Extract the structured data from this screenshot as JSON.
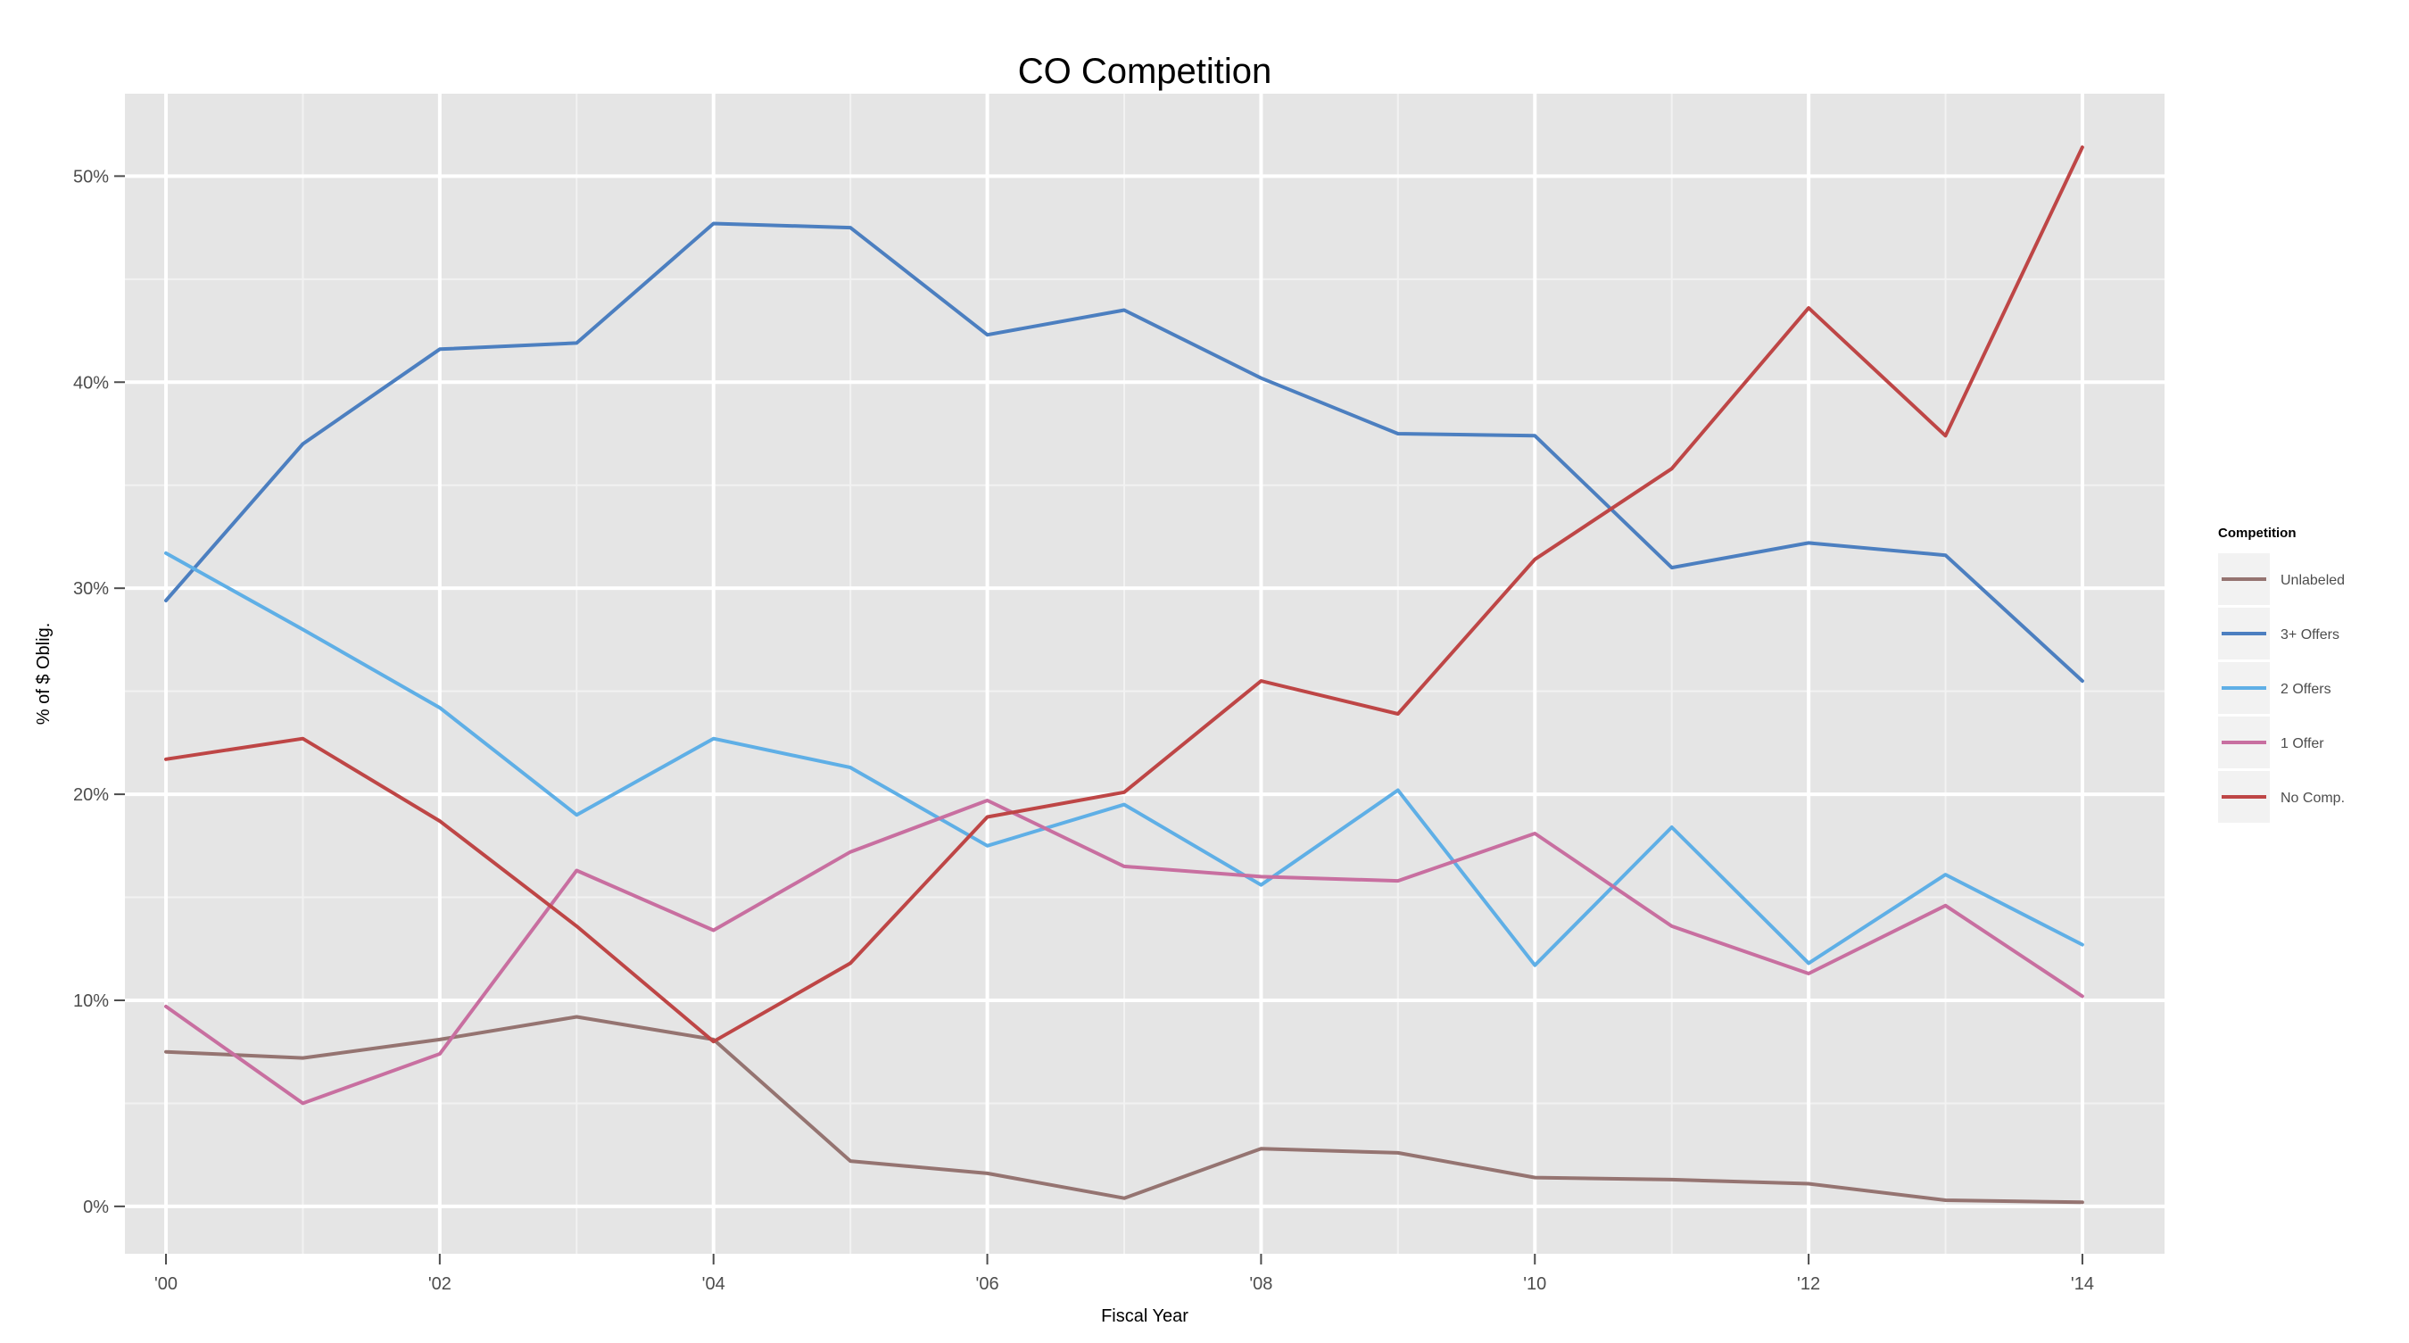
{
  "chart_data": {
    "type": "line",
    "title": "CO Competition",
    "xlabel": "Fiscal Year",
    "ylabel": "% of $ Oblig.",
    "x": [
      2000,
      2001,
      2002,
      2003,
      2004,
      2005,
      2006,
      2007,
      2008,
      2009,
      2010,
      2011,
      2012,
      2013,
      2014
    ],
    "x_ticks": [
      {
        "value": 2000,
        "label": "'00"
      },
      {
        "value": 2002,
        "label": "'02"
      },
      {
        "value": 2004,
        "label": "'04"
      },
      {
        "value": 2006,
        "label": "'06"
      },
      {
        "value": 2008,
        "label": "'08"
      },
      {
        "value": 2010,
        "label": "'10"
      },
      {
        "value": 2012,
        "label": "'12"
      },
      {
        "value": 2014,
        "label": "'14"
      }
    ],
    "y_ticks": [
      {
        "value": 0,
        "label": "0%"
      },
      {
        "value": 10,
        "label": "10%"
      },
      {
        "value": 20,
        "label": "20%"
      },
      {
        "value": 30,
        "label": "30%"
      },
      {
        "value": 40,
        "label": "40%"
      },
      {
        "value": 50,
        "label": "50%"
      }
    ],
    "xlim": [
      1999.7,
      2014.6
    ],
    "ylim": [
      -2.3,
      54.0
    ],
    "grid": true,
    "legend_title": "Competition",
    "legend_position": "right",
    "series": [
      {
        "name": "Unlabeled",
        "color": "#957471",
        "values": [
          7.5,
          7.2,
          8.1,
          9.2,
          8.1,
          2.2,
          1.6,
          0.4,
          2.8,
          2.6,
          1.4,
          1.3,
          1.1,
          0.3,
          0.2
        ]
      },
      {
        "name": "3+ Offers",
        "color": "#4C7FC0",
        "values": [
          29.4,
          37.0,
          41.6,
          41.9,
          47.7,
          47.5,
          42.3,
          43.5,
          40.2,
          37.5,
          37.4,
          31.0,
          32.2,
          31.6,
          25.5
        ]
      },
      {
        "name": "2 Offers",
        "color": "#5FAFE6",
        "values": [
          31.7,
          28.0,
          24.2,
          19.0,
          22.7,
          21.3,
          17.5,
          19.5,
          15.6,
          20.2,
          11.7,
          18.4,
          11.8,
          16.1,
          12.7
        ]
      },
      {
        "name": "1 Offer",
        "color": "#C86FA0",
        "values": [
          9.7,
          5.0,
          7.4,
          16.3,
          13.4,
          17.2,
          19.7,
          16.5,
          16.0,
          15.8,
          18.1,
          13.6,
          11.3,
          14.6,
          10.2
        ]
      },
      {
        "name": "No Comp.",
        "color": "#BE4646",
        "values": [
          21.7,
          22.7,
          18.7,
          13.6,
          8.0,
          11.8,
          18.9,
          20.1,
          25.5,
          23.9,
          31.4,
          35.8,
          43.6,
          37.4,
          51.4
        ]
      }
    ],
    "colors": {
      "panel_background": "#E5E5E5",
      "grid_major": "#FFFFFF",
      "grid_minor": "#F2F2F2",
      "tick_text": "#4D4D4D",
      "legend_key_background": "#F2F2F2"
    }
  }
}
